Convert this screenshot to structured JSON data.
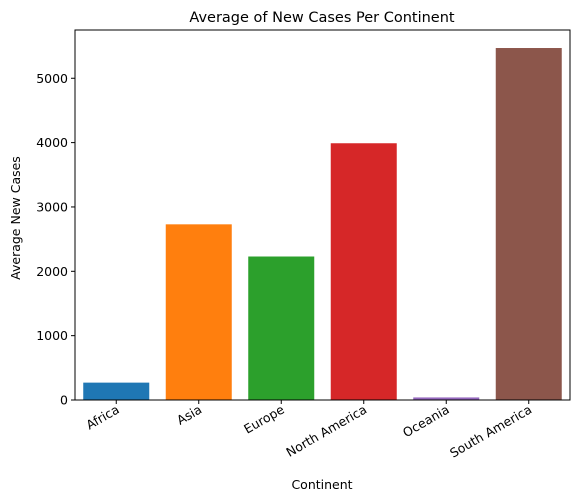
{
  "chart_data": {
    "type": "bar",
    "title": "Average of New Cases Per Continent",
    "xlabel": "Continent",
    "ylabel": "Average New Cases",
    "categories": [
      "Africa",
      "Asia",
      "Europe",
      "North America",
      "Oceania",
      "South America"
    ],
    "values": [
      270,
      2730,
      2230,
      3990,
      40,
      5470
    ],
    "colors": [
      "#1f77b4",
      "#ff7f0e",
      "#2ca02c",
      "#d62728",
      "#9467bd",
      "#8c564b"
    ],
    "ylim": [
      0,
      5750
    ],
    "yticks": [
      0,
      1000,
      2000,
      3000,
      4000,
      5000
    ],
    "grid": false
  }
}
